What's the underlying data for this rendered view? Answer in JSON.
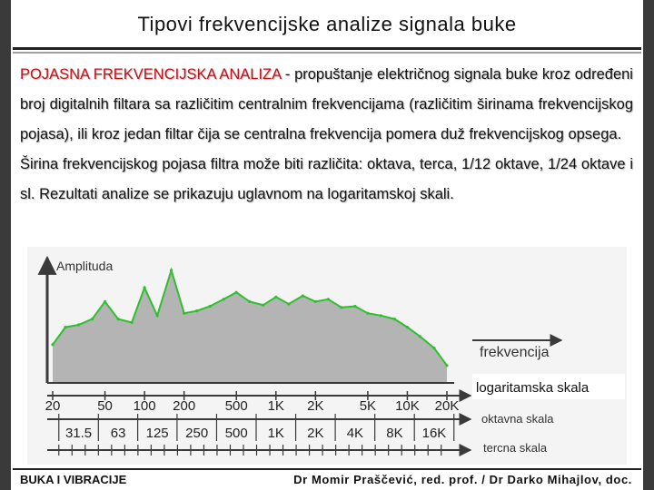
{
  "slide": {
    "title": "Tipovi frekvencijske analize signala buke",
    "paragraph1": {
      "term": "POJASNA FREKVENCIJSKA ANALIZA",
      "text": " - propuštanje električnog signala buke kroz određeni broj digitalnih filtara sa različitim centralnim frekvencijama (različitim širinama frekvencijskog pojasa), ili kroz jedan filtar čija se centralna frekvencija pomera duž frekvencijskog opsega."
    },
    "paragraph2": "Širina frekvencijskog pojasa filtra može biti različita: oktava, terca, 1/12 oktave, 1/24 oktave i sl. Rezultati analize se prikazuju uglavnom na logaritamskoj skali."
  },
  "figure": {
    "y_label": "Amplituda",
    "x_label": "frekvencija",
    "scale_label": "logaritamska skala",
    "octave_label": "oktavna skala",
    "third_label": "tercna skala",
    "log_ticks": [
      "20",
      "50",
      "100",
      "200",
      "500",
      "1K",
      "2K",
      "5K",
      "10K",
      "20K"
    ],
    "octave_ticks": [
      "31.5",
      "63",
      "125",
      "250",
      "500",
      "1K",
      "2K",
      "4K",
      "8K",
      "16K"
    ],
    "colors": {
      "fill": "#b4b4b4",
      "line": "#2fbf2f",
      "axis": "#3a3a3a"
    },
    "chart_data": {
      "type": "area",
      "x": [
        20,
        25,
        31.5,
        40,
        50,
        63,
        80,
        100,
        125,
        160,
        200,
        250,
        315,
        400,
        500,
        630,
        800,
        1000,
        1250,
        1600,
        2000,
        2500,
        3150,
        4000,
        5000,
        6300,
        8000,
        10000,
        12500,
        16000,
        20000
      ],
      "values": [
        0.33,
        0.48,
        0.5,
        0.55,
        0.7,
        0.55,
        0.52,
        0.82,
        0.58,
        0.97,
        0.6,
        0.62,
        0.66,
        0.72,
        0.78,
        0.7,
        0.67,
        0.74,
        0.68,
        0.75,
        0.7,
        0.72,
        0.65,
        0.66,
        0.6,
        0.58,
        0.55,
        0.48,
        0.4,
        0.3,
        0.15
      ],
      "xlabel": "frekvencija",
      "ylabel": "Amplituda",
      "xscale": "log",
      "xlim": [
        20,
        20000
      ],
      "ylim": [
        0,
        1
      ]
    }
  },
  "footer": {
    "left": "BUKA I VIBRACIJE",
    "right": "Dr Momir Praščević, red. prof. / Dr Darko Mihajlov, doc."
  }
}
